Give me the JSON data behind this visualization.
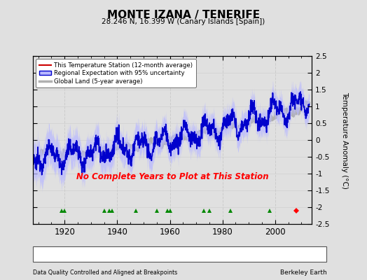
{
  "title": "MONTE IZANA / TENERIFE",
  "subtitle": "28.246 N, 16.399 W (Canary Islands [Spain])",
  "xlabel_bottom": "Data Quality Controlled and Aligned at Breakpoints",
  "xlabel_right": "Berkeley Earth",
  "ylabel": "Temperature Anomaly (°C)",
  "no_data_text": "No Complete Years to Plot at This Station",
  "ylim": [
    -2.5,
    2.5
  ],
  "xlim": [
    1908,
    2014
  ],
  "yticks": [
    -2.5,
    -2,
    -1.5,
    -1,
    -0.5,
    0,
    0.5,
    1,
    1.5,
    2,
    2.5
  ],
  "xticks": [
    1920,
    1940,
    1960,
    1980,
    2000
  ],
  "bg_color": "#e0e0e0",
  "plot_bg_color": "#e0e0e0",
  "regional_fill_color": "#b8b8ff",
  "regional_line_color": "#0000cc",
  "global_land_color": "#b0b0b0",
  "station_color": "#cc0000",
  "no_data_color": "#ff0000",
  "marker_y": -2.1,
  "record_gaps": [
    1919,
    1920,
    1935,
    1937,
    1938,
    1947,
    1955,
    1959,
    1960,
    1973,
    1975,
    1983,
    1998
  ],
  "station_moves": [
    2008
  ],
  "obs_changes": [],
  "empirical_breaks": [],
  "grid_color": "#cccccc",
  "legend_items": [
    "This Temperature Station (12-month average)",
    "Regional Expectation with 95% uncertainty",
    "Global Land (5-year average)"
  ]
}
